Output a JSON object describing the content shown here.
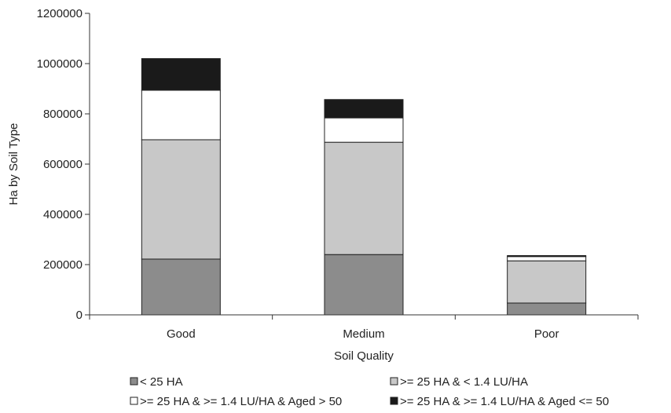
{
  "chart_data": {
    "type": "bar",
    "stacked": true,
    "title": "",
    "xlabel": "Soil Quality",
    "ylabel": "Ha by Soil Type",
    "categories": [
      "Good",
      "Medium",
      "Poor"
    ],
    "ylim": [
      0,
      1200000
    ],
    "yticks": [
      0,
      200000,
      400000,
      600000,
      800000,
      1000000,
      1200000
    ],
    "ytick_labels": [
      "0",
      "200000",
      "400000",
      "600000",
      "800000",
      "1000000",
      "1200000"
    ],
    "grid": false,
    "legend_position": "bottom",
    "series": [
      {
        "name": "< 25 HA",
        "color": "#8c8c8c",
        "values": [
          222000,
          240000,
          47000
        ]
      },
      {
        "name": ">= 25 HA & < 1.4 LU/HA",
        "color": "#c8c8c8",
        "values": [
          475000,
          447000,
          168000
        ]
      },
      {
        "name": ">= 25 HA & >= 1.4 LU/HA & Aged > 50",
        "color": "#ffffff",
        "values": [
          197000,
          97000,
          17000
        ]
      },
      {
        "name": ">= 25 HA & >= 1.4 LU/HA & Aged <= 50",
        "color": "#1a1a1a",
        "values": [
          126000,
          73000,
          4000
        ]
      }
    ]
  }
}
